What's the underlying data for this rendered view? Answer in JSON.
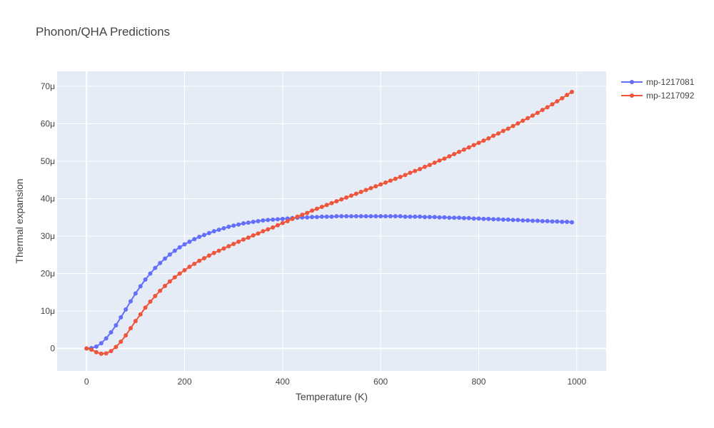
{
  "chart_data": {
    "type": "line",
    "title": "Phonon/QHA Predictions",
    "xlabel": "Temperature (K)",
    "ylabel": "Thermal expansion",
    "xlim": [
      -60,
      1060
    ],
    "ylim": [
      -6,
      74
    ],
    "x_ticks": [
      0,
      200,
      400,
      600,
      800,
      1000
    ],
    "x_tick_labels": [
      "0",
      "200",
      "400",
      "600",
      "800",
      "1000"
    ],
    "y_ticks": [
      0,
      10,
      20,
      30,
      40,
      50,
      60,
      70
    ],
    "y_tick_labels": [
      "0",
      "10μ",
      "20μ",
      "30μ",
      "40μ",
      "50μ",
      "60μ",
      "70μ"
    ],
    "y_unit": "1e-6",
    "grid": true,
    "legend_position": "top-right",
    "x": [
      0,
      10,
      20,
      30,
      40,
      50,
      60,
      70,
      80,
      90,
      100,
      110,
      120,
      130,
      140,
      150,
      160,
      170,
      180,
      190,
      200,
      210,
      220,
      230,
      240,
      250,
      260,
      270,
      280,
      290,
      300,
      310,
      320,
      330,
      340,
      350,
      360,
      370,
      380,
      390,
      400,
      410,
      420,
      430,
      440,
      450,
      460,
      470,
      480,
      490,
      500,
      510,
      520,
      530,
      540,
      550,
      560,
      570,
      580,
      590,
      600,
      610,
      620,
      630,
      640,
      650,
      660,
      670,
      680,
      690,
      700,
      710,
      720,
      730,
      740,
      750,
      760,
      770,
      780,
      790,
      800,
      810,
      820,
      830,
      840,
      850,
      860,
      870,
      880,
      890,
      900,
      910,
      920,
      930,
      940,
      950,
      960,
      970,
      980,
      990
    ],
    "series": [
      {
        "name": "mp-1217081",
        "color": "#636efa",
        "values": [
          0.0,
          0.1,
          0.5,
          1.4,
          2.7,
          4.3,
          6.2,
          8.3,
          10.4,
          12.6,
          14.7,
          16.6,
          18.4,
          20.0,
          21.5,
          22.8,
          24.0,
          25.1,
          26.1,
          27.0,
          27.8,
          28.5,
          29.2,
          29.8,
          30.3,
          30.8,
          31.3,
          31.7,
          32.1,
          32.5,
          32.8,
          33.1,
          33.4,
          33.6,
          33.8,
          34.0,
          34.2,
          34.3,
          34.4,
          34.5,
          34.6,
          34.7,
          34.8,
          34.9,
          35.0,
          35.0,
          35.1,
          35.1,
          35.2,
          35.2,
          35.2,
          35.3,
          35.3,
          35.3,
          35.3,
          35.3,
          35.3,
          35.3,
          35.3,
          35.3,
          35.3,
          35.3,
          35.3,
          35.3,
          35.3,
          35.2,
          35.2,
          35.2,
          35.2,
          35.1,
          35.1,
          35.1,
          35.0,
          35.0,
          34.9,
          34.9,
          34.9,
          34.8,
          34.8,
          34.7,
          34.7,
          34.6,
          34.6,
          34.5,
          34.5,
          34.4,
          34.4,
          34.3,
          34.3,
          34.2,
          34.2,
          34.1,
          34.1,
          34.0,
          34.0,
          33.9,
          33.9,
          33.8,
          33.8,
          33.7
        ]
      },
      {
        "name": "mp-1217092",
        "color": "#ef553b",
        "values": [
          0.0,
          -0.3,
          -1.0,
          -1.4,
          -1.3,
          -0.7,
          0.4,
          1.8,
          3.5,
          5.4,
          7.3,
          9.1,
          10.9,
          12.5,
          14.0,
          15.4,
          16.7,
          17.9,
          19.0,
          20.0,
          20.9,
          21.8,
          22.6,
          23.4,
          24.1,
          24.8,
          25.5,
          26.1,
          26.7,
          27.3,
          27.9,
          28.5,
          29.1,
          29.6,
          30.2,
          30.7,
          31.3,
          31.8,
          32.3,
          32.9,
          33.5,
          34.0,
          34.6,
          35.2,
          35.7,
          36.2,
          36.8,
          37.3,
          37.8,
          38.3,
          38.8,
          39.3,
          39.8,
          40.3,
          40.8,
          41.3,
          41.8,
          42.3,
          42.8,
          43.3,
          43.8,
          44.3,
          44.8,
          45.3,
          45.8,
          46.3,
          46.9,
          47.4,
          47.9,
          48.5,
          49.0,
          49.6,
          50.2,
          50.7,
          51.3,
          51.9,
          52.5,
          53.1,
          53.7,
          54.3,
          54.9,
          55.5,
          56.1,
          56.8,
          57.4,
          58.1,
          58.7,
          59.4,
          60.1,
          60.8,
          61.5,
          62.2,
          62.9,
          63.7,
          64.4,
          65.2,
          66.0,
          66.8,
          67.7,
          68.5
        ]
      }
    ]
  }
}
